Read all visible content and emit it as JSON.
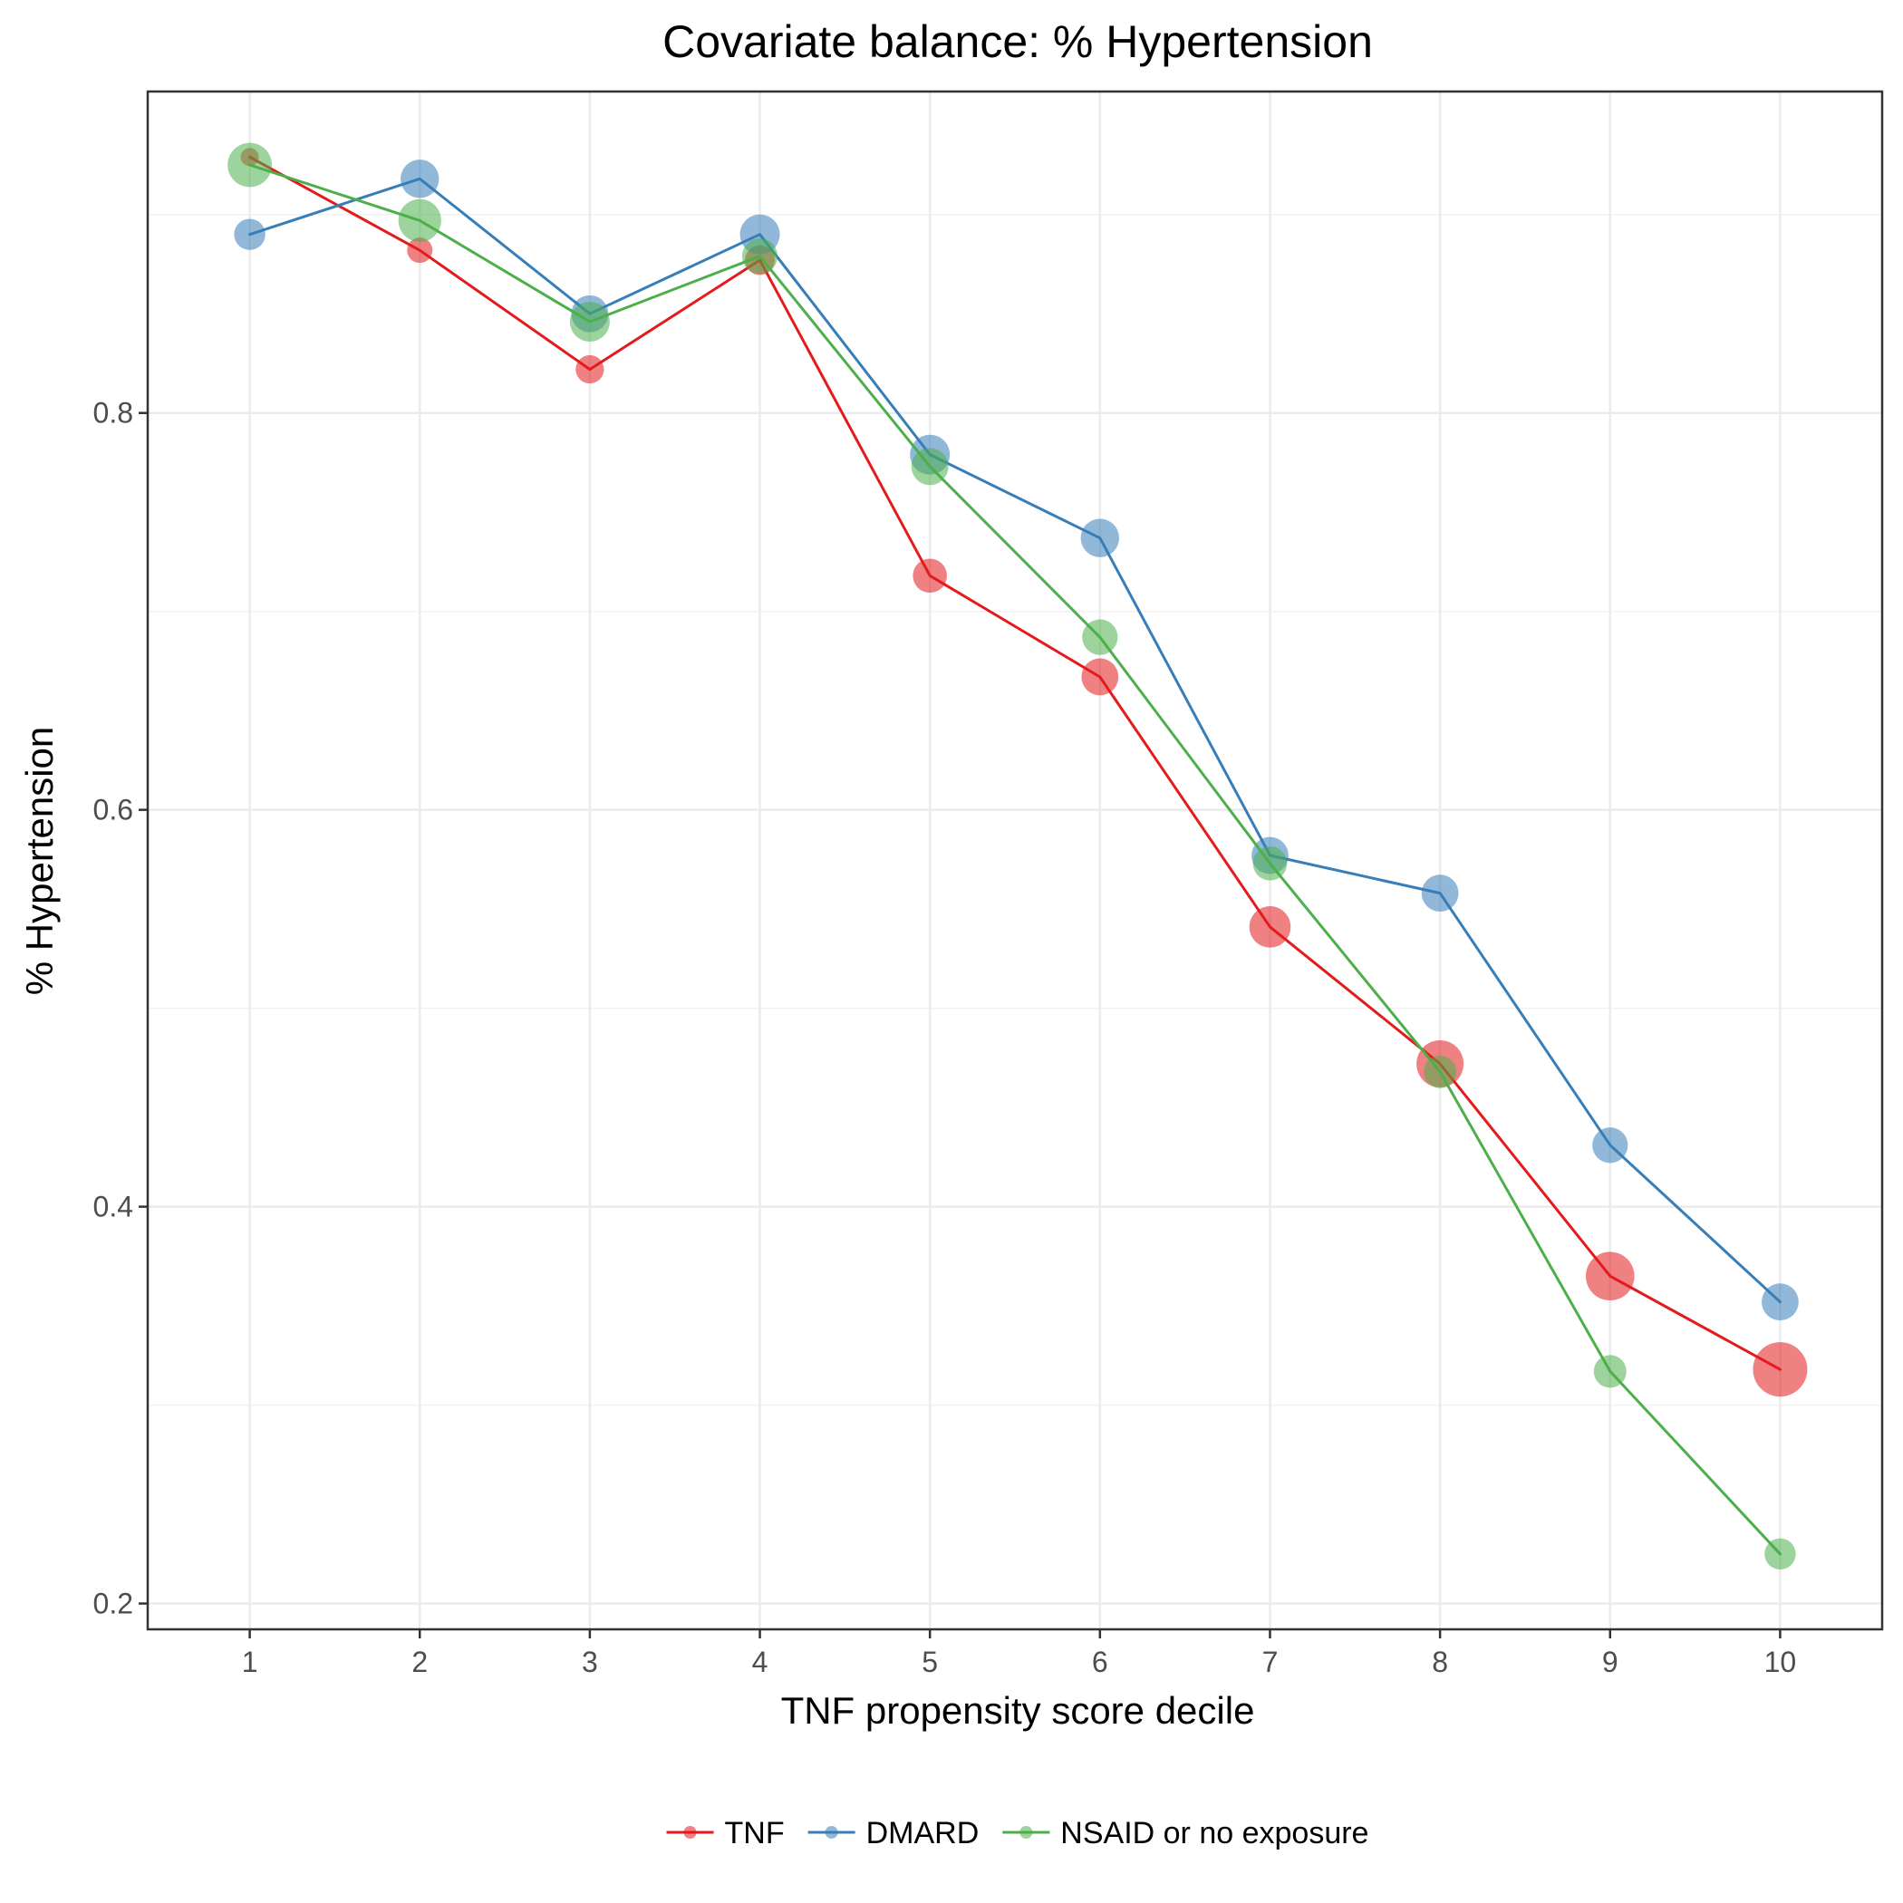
{
  "chart_data": {
    "type": "line",
    "title": "Covariate balance: % Hypertension",
    "xlabel": "TNF propensity score decile",
    "ylabel": "% Hypertension",
    "x": [
      1,
      2,
      3,
      4,
      5,
      6,
      7,
      8,
      9,
      10
    ],
    "xlim": [
      0.4,
      10.6
    ],
    "ylim": [
      0.187,
      0.962
    ],
    "x_ticks": [
      1,
      2,
      3,
      4,
      5,
      6,
      7,
      8,
      9,
      10
    ],
    "x_tick_labels": [
      "1",
      "2",
      "3",
      "4",
      "5",
      "6",
      "7",
      "8",
      "9",
      "10"
    ],
    "y_ticks": [
      0.2,
      0.4,
      0.6,
      0.8
    ],
    "y_tick_labels": [
      "0.2",
      "0.4",
      "0.6",
      "0.8"
    ],
    "grid": true,
    "legend_position": "bottom",
    "series": [
      {
        "name": "TNF",
        "color": "#e41a1c",
        "values": [
          0.929,
          0.882,
          0.822,
          0.877,
          0.718,
          0.667,
          0.541,
          0.472,
          0.365,
          0.318
        ],
        "sizes": [
          0.5,
          1.0,
          1.2,
          1.3,
          1.6,
          1.8,
          2.1,
          2.5,
          2.6,
          3.0
        ]
      },
      {
        "name": "DMARD",
        "color": "#377eb8",
        "values": [
          0.89,
          0.918,
          0.85,
          0.89,
          0.779,
          0.737,
          0.577,
          0.558,
          0.431,
          0.352
        ],
        "sizes": [
          1.4,
          1.9,
          1.8,
          2.0,
          2.0,
          1.9,
          1.8,
          1.8,
          1.7,
          1.8
        ]
      },
      {
        "name": "NSAID or no exposure",
        "color": "#4daf4a",
        "values": [
          0.925,
          0.897,
          0.846,
          0.879,
          0.773,
          0.687,
          0.573,
          0.468,
          0.317,
          0.225
        ],
        "sizes": [
          2.3,
          2.2,
          2.0,
          1.7,
          1.8,
          1.7,
          1.6,
          1.5,
          1.5,
          1.4
        ]
      }
    ]
  }
}
